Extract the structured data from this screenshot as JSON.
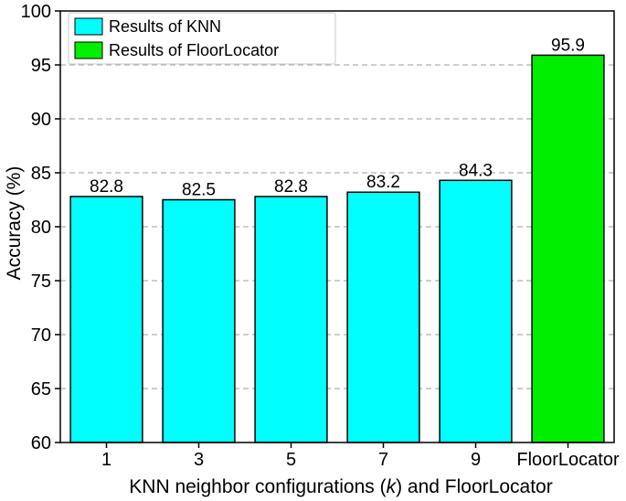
{
  "chart_data": {
    "type": "bar",
    "categories": [
      "1",
      "3",
      "5",
      "7",
      "9",
      "FloorLocator"
    ],
    "values": [
      82.8,
      82.5,
      82.8,
      83.2,
      84.3,
      95.9
    ],
    "value_labels": [
      "82.8",
      "82.5",
      "82.8",
      "83.2",
      "84.3",
      "95.9"
    ],
    "series": [
      {
        "name": "Results of KNN",
        "color": "#00ffff",
        "category_indices": [
          0,
          1,
          2,
          3,
          4
        ]
      },
      {
        "name": "Results of FloorLocator",
        "color": "#00ee00",
        "category_indices": [
          5
        ]
      }
    ],
    "xlabel_parts": [
      "KNN neighbor configurations (",
      "k",
      ") and FloorLocator"
    ],
    "ylabel": "Accuracy (%)",
    "ylim": [
      60,
      100
    ],
    "yticks": [
      60,
      65,
      70,
      75,
      80,
      85,
      90,
      95,
      100
    ],
    "grid": "horizontal-dashed",
    "legend_position": "top-left"
  }
}
